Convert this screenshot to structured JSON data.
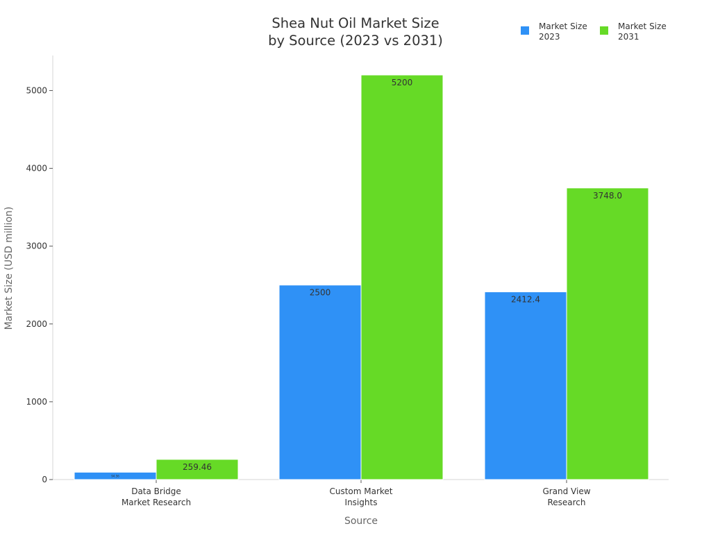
{
  "chart_data": {
    "type": "bar",
    "title": [
      "Shea Nut Oil Market Size",
      "by Source (2023 vs 2031)"
    ],
    "xlabel": "Source",
    "ylabel": "Market Size (USD million)",
    "ylim": [
      0,
      5450
    ],
    "yticks": [
      0,
      1000,
      2000,
      3000,
      4000,
      5000
    ],
    "grid": false,
    "legend_position": "top-right",
    "categories": [
      [
        "Data Bridge",
        "Market Research"
      ],
      [
        "Custom Market",
        "Insights"
      ],
      [
        "Grand View",
        "Research"
      ]
    ],
    "series": [
      {
        "name": [
          "Market Size",
          "2023"
        ],
        "color": "#2f91f6",
        "values": [
          94.56,
          2500,
          2412.4
        ],
        "labels": [
          "94.56",
          "2500",
          "2412.4"
        ]
      },
      {
        "name": [
          "Market Size",
          "2031"
        ],
        "color": "#66da26",
        "values": [
          259.46,
          5200,
          3748.0
        ],
        "labels": [
          "259.46",
          "5200",
          "3748.0"
        ]
      }
    ]
  }
}
